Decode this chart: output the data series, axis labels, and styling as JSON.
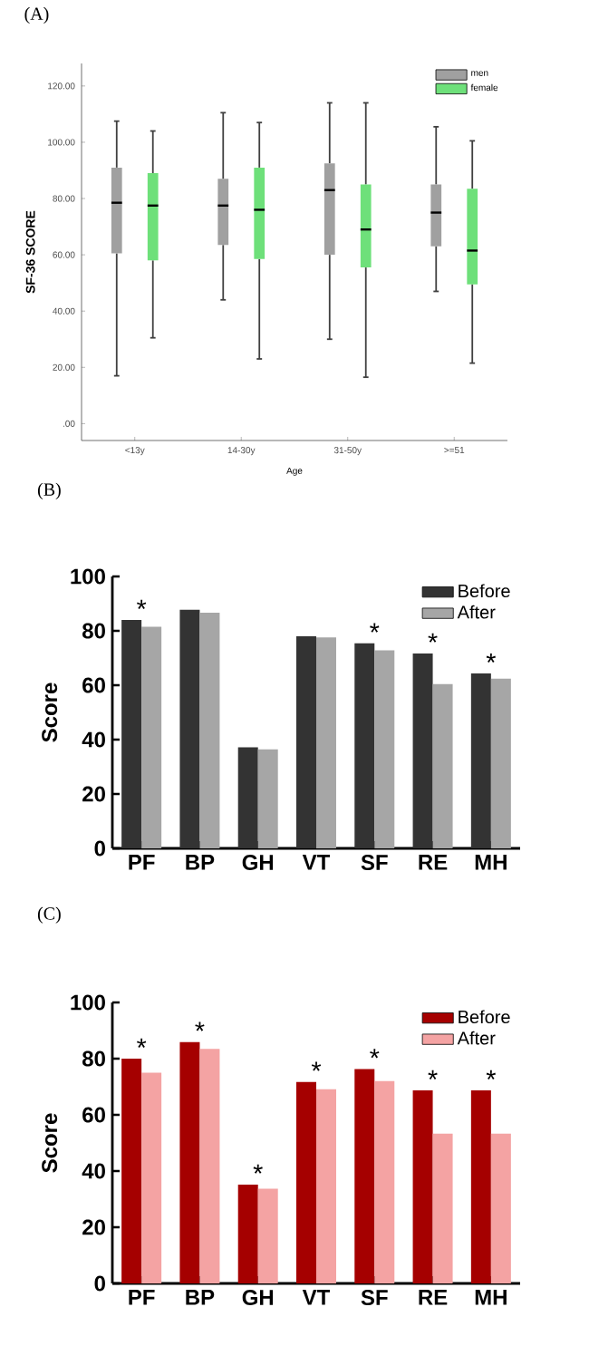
{
  "chart_data": [
    {
      "type": "box",
      "title": "(A)",
      "xlabel": "Age",
      "ylabel": "SF-36 SCORE",
      "categories": [
        "<13y",
        "14-30y",
        "31-50y",
        ">=51"
      ],
      "ylim": [
        -6,
        128
      ],
      "yticks": [
        {
          "value": 0,
          "label": ".00"
        },
        {
          "value": 20,
          "label": "20.00"
        },
        {
          "value": 40,
          "label": "40.00"
        },
        {
          "value": 60,
          "label": "60.00"
        },
        {
          "value": 80,
          "label": "80.00"
        },
        {
          "value": 100,
          "label": "100.00"
        },
        {
          "value": 120,
          "label": "120.00"
        }
      ],
      "legend": "top right",
      "series": [
        {
          "name": "men",
          "color": "#a0a0a0",
          "boxes": [
            {
              "low": 17,
              "q1": 60.5,
              "median": 78.5,
              "q3": 91,
              "high": 107.5
            },
            {
              "low": 44,
              "q1": 63.5,
              "median": 77.5,
              "q3": 87,
              "high": 110.5
            },
            {
              "low": 30,
              "q1": 60,
              "median": 83,
              "q3": 92.5,
              "high": 114
            },
            {
              "low": 47,
              "q1": 63,
              "median": 75,
              "q3": 85,
              "high": 105.5
            }
          ]
        },
        {
          "name": "female",
          "color": "#6ee07a",
          "boxes": [
            {
              "low": 30.5,
              "q1": 58,
              "median": 77.5,
              "q3": 89,
              "high": 104
            },
            {
              "low": 23,
              "q1": 58.5,
              "median": 76,
              "q3": 91,
              "high": 107
            },
            {
              "low": 16.5,
              "q1": 55.5,
              "median": 69,
              "q3": 85,
              "high": 114
            },
            {
              "low": 21.5,
              "q1": 49.5,
              "median": 61.5,
              "q3": 83.5,
              "high": 100.5
            }
          ]
        }
      ]
    },
    {
      "type": "bar",
      "title": "(B)",
      "ylabel": "Score",
      "categories": [
        "PF",
        "BP",
        "GH",
        "VT",
        "SF",
        "RE",
        "MH"
      ],
      "ylim": [
        0,
        100
      ],
      "yticks": [
        0,
        20,
        40,
        60,
        80,
        100
      ],
      "legend": "top right",
      "series": [
        {
          "name": "Before",
          "color": "#333333",
          "values": [
            84,
            87.8,
            37.2,
            78,
            75.4,
            71.7,
            64.3
          ]
        },
        {
          "name": "After",
          "color": "#a6a6a6",
          "values": [
            81.5,
            86.7,
            36.4,
            77.6,
            72.8,
            60.4,
            62.4
          ]
        }
      ],
      "annotations": [
        {
          "text": "*",
          "x": "PF",
          "y": 84
        },
        {
          "text": "*",
          "x": "SF",
          "y": 75.4
        },
        {
          "text": "*",
          "x": "RE",
          "y": 71.7
        },
        {
          "text": "*",
          "x": "MH",
          "y": 64.3
        }
      ]
    },
    {
      "type": "bar",
      "title": "(C)",
      "ylabel": "Score",
      "categories": [
        "PF",
        "BP",
        "GH",
        "VT",
        "SF",
        "RE",
        "MH"
      ],
      "ylim": [
        0,
        100
      ],
      "yticks": [
        0,
        20,
        40,
        60,
        80,
        100
      ],
      "legend": "top right",
      "series": [
        {
          "name": "Before",
          "color": "#a50000",
          "values": [
            80,
            85.9,
            35.2,
            71.7,
            76.3,
            68.7,
            68.7
          ]
        },
        {
          "name": "After",
          "color": "#f4a3a3",
          "values": [
            75,
            83.5,
            33.7,
            69.1,
            72,
            53.3,
            53.3
          ]
        }
      ],
      "annotations": [
        {
          "text": "*",
          "x": "PF",
          "y": 80
        },
        {
          "text": "*",
          "x": "BP",
          "y": 85.9
        },
        {
          "text": "*",
          "x": "GH",
          "y": 35.2
        },
        {
          "text": "*",
          "x": "VT",
          "y": 71.7
        },
        {
          "text": "*",
          "x": "SF",
          "y": 76.3
        },
        {
          "text": "*",
          "x": "RE",
          "y": 68.7
        },
        {
          "text": "*",
          "x": "MH",
          "y": 68.7
        }
      ]
    }
  ]
}
